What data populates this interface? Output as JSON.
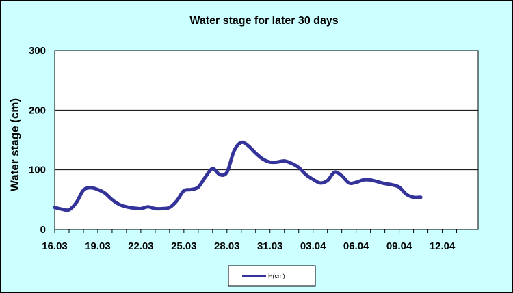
{
  "colors": {
    "chart_area": "#ccffff",
    "plot_area": "#ffffff",
    "series_line": "#333399",
    "gridline": "#000000"
  },
  "chart_data": {
    "type": "line",
    "title": "Water stage for later 30 days",
    "xlabel": "",
    "ylabel": "Water stage (cm)",
    "ylim": [
      0,
      300
    ],
    "yticks": [
      "0",
      "100",
      "200",
      "300"
    ],
    "grid": "horizontal major gridlines",
    "legend_position": "bottom",
    "xlim_days": [
      0,
      29.5
    ],
    "xtick_labels": [
      "16.03",
      "19.03",
      "22.03",
      "25.03",
      "28.03",
      "31.03",
      "03.04",
      "06.04",
      "09.04",
      "12.04"
    ],
    "series": [
      {
        "name": "H(cm)",
        "x": [
          "16.03",
          "16.5.03",
          "17.03",
          "17.5.03",
          "18.03",
          "18.5.03",
          "19.03",
          "19.5.03",
          "20.03",
          "21.03",
          "22.03",
          "23.03",
          "24.03",
          "25.03",
          "26.03",
          "27.03",
          "27.5.03",
          "28.03",
          "28.5.03",
          "29.03",
          "29.5.03",
          "30.03",
          "30.5.03",
          "31.03",
          "31.5.03",
          "01.04",
          "01.5.04",
          "02.04",
          "02.5.04",
          "03.04",
          "03.5.04",
          "04.04",
          "04.5.04",
          "05.04",
          "05.5.04",
          "06.04",
          "06.5.04",
          "07.04",
          "07.5.04",
          "08.04",
          "08.5.04",
          "09.04",
          "09.5.04",
          "10.04",
          "10.5.04",
          "11.04",
          "11.5.04",
          "12.04",
          "12.5.04",
          "13.04",
          "13.5.04",
          "14.04"
        ],
        "values": [
          37,
          34,
          33,
          45,
          66,
          70,
          67,
          61,
          50,
          42,
          38,
          36,
          35,
          38,
          35,
          35,
          37,
          48,
          65,
          67,
          71,
          88,
          102,
          92,
          96,
          132,
          146,
          140,
          128,
          118,
          113,
          113,
          115,
          111,
          104,
          92,
          84,
          78,
          82,
          96,
          90,
          78,
          79,
          83,
          83,
          80,
          77,
          75,
          71,
          59,
          54,
          54
        ]
      }
    ]
  }
}
